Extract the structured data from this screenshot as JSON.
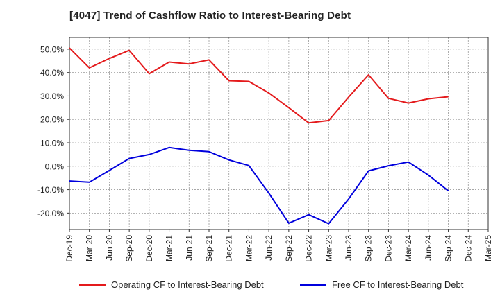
{
  "chart_data": {
    "type": "line",
    "title": "[4047]  Trend of Cashflow Ratio to Interest-Bearing Debt",
    "xlabel": "",
    "ylabel": "",
    "ylim": [
      -27,
      55
    ],
    "yticks": [
      -20,
      -10,
      0,
      10,
      20,
      30,
      40,
      50
    ],
    "ytick_labels": [
      "-20.0%",
      "-10.0%",
      "0.0%",
      "10.0%",
      "20.0%",
      "30.0%",
      "40.0%",
      "50.0%"
    ],
    "x_labels": [
      "Dec-19",
      "Mar-20",
      "Jun-20",
      "Sep-20",
      "Dec-20",
      "Mar-21",
      "Jun-21",
      "Sep-21",
      "Dec-21",
      "Mar-22",
      "Jun-22",
      "Sep-22",
      "Dec-22",
      "Mar-23",
      "Jun-23",
      "Sep-23",
      "Dec-23",
      "Mar-24",
      "Jun-24",
      "Sep-24",
      "Dec-24",
      "Mar-25"
    ],
    "grid": true,
    "legend_position": "bottom",
    "series": [
      {
        "name": "Operating CF to Interest-Bearing Debt",
        "color": "#e41a1c",
        "values": [
          50.5,
          42.0,
          46.0,
          49.5,
          39.5,
          44.5,
          43.7,
          45.4,
          36.5,
          36.2,
          31.3,
          25.0,
          18.5,
          19.5,
          29.5,
          39.0,
          29.0,
          27.0,
          28.8,
          29.7,
          null,
          null
        ]
      },
      {
        "name": "Free CF to Interest-Bearing Debt",
        "color": "#0000dd",
        "values": [
          -6.3,
          -6.8,
          -1.8,
          3.3,
          5.0,
          8.0,
          6.8,
          6.2,
          2.7,
          0.3,
          -11.5,
          -24.3,
          -20.7,
          -24.5,
          -14.0,
          -2.0,
          0.2,
          1.8,
          -3.8,
          -10.5,
          null,
          null
        ]
      }
    ]
  }
}
